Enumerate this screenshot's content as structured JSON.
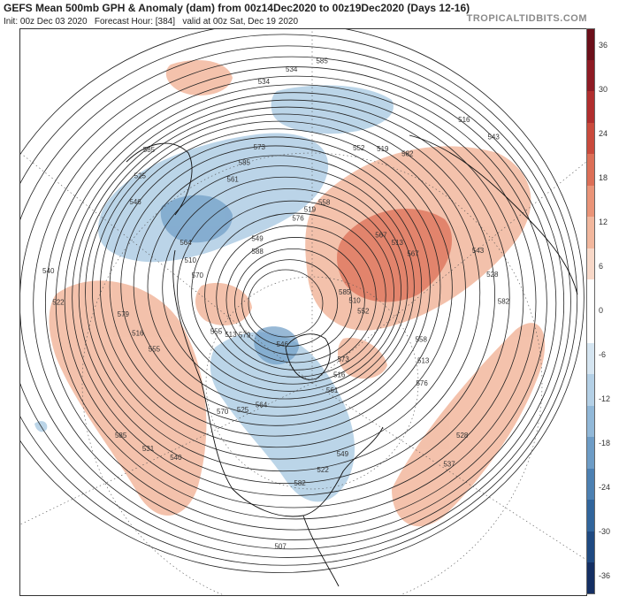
{
  "header": {
    "title": "GEFS Mean 500mb GPH & Anomaly (dam) from 00z14Dec2020 to 00z19Dec2020 (Days 12-16)",
    "init": "Init: 00z Dec 03 2020",
    "forecast_hour": "Forecast Hour: [384]",
    "valid": "valid at 00z Sat, Dec 19 2020",
    "brand": "TROPICALTIDBITS.COM"
  },
  "colorbar": {
    "labels": [
      "36",
      "30",
      "24",
      "18",
      "12",
      "6",
      "0",
      "-6",
      "-12",
      "-18",
      "-24",
      "-30",
      "-36"
    ],
    "colors": [
      "#6b0f1a",
      "#8e1b24",
      "#b02e2e",
      "#c94a3c",
      "#dc6f57",
      "#ea9478",
      "#f2b79d",
      "#f8d8c8",
      "#ffffff",
      "#ffffff",
      "#d5e5f1",
      "#b4d0e6",
      "#91b8d8",
      "#6d9cc6",
      "#4c80b2",
      "#31659c",
      "#1f4a82",
      "#142f63"
    ]
  },
  "map": {
    "contour_labels": [
      "585",
      "579",
      "576",
      "573",
      "570",
      "567",
      "564",
      "561",
      "558",
      "555",
      "552",
      "549",
      "546",
      "543",
      "540",
      "534",
      "528",
      "522",
      "516",
      "507",
      "588",
      "510",
      "513",
      "519",
      "516",
      "510",
      "513",
      "525",
      "585",
      "513",
      "516",
      "519",
      "522",
      "525",
      "528",
      "531",
      "534",
      "537",
      "540",
      "543",
      "546",
      "549",
      "552",
      "555",
      "558",
      "561",
      "564",
      "567",
      "570",
      "573",
      "576",
      "579",
      "582",
      "582",
      "585",
      "582",
      "585",
      "585"
    ]
  }
}
